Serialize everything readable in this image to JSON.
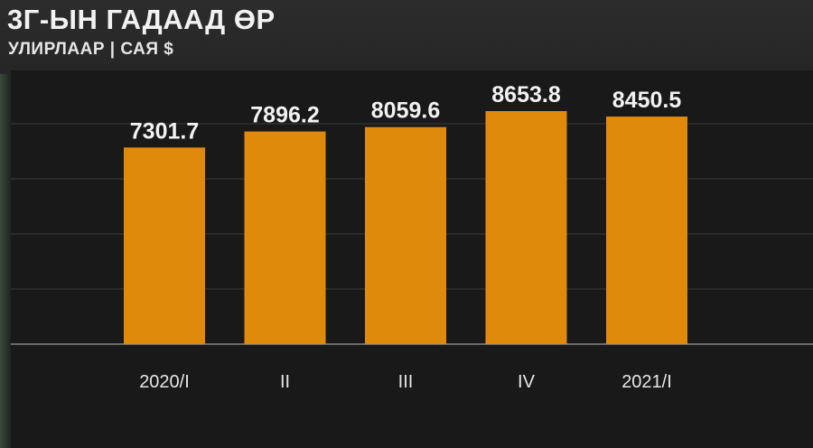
{
  "header": {
    "title": "3Г-ЫН ГАДААД ӨР",
    "subtitle": "УЛИРЛААР | САЯ $"
  },
  "colors": {
    "bar": "#e08a0c",
    "background": "#191919",
    "grid": "#3a3a3a",
    "text": "#f2f2f2"
  },
  "chart_data": {
    "type": "bar",
    "title": "3Г-ЫН ГАДААД ӨР",
    "subtitle": "УЛИРЛААР | САЯ $",
    "categories": [
      "2020/I",
      "II",
      "III",
      "IV",
      "2021/I"
    ],
    "values": [
      7301.7,
      7896.2,
      8059.6,
      8653.8,
      8450.5
    ],
    "data_labels": [
      "7301.7",
      "7896.2",
      "8059.6",
      "8653.8",
      "8450.5"
    ],
    "grid": true,
    "legend": "none"
  }
}
